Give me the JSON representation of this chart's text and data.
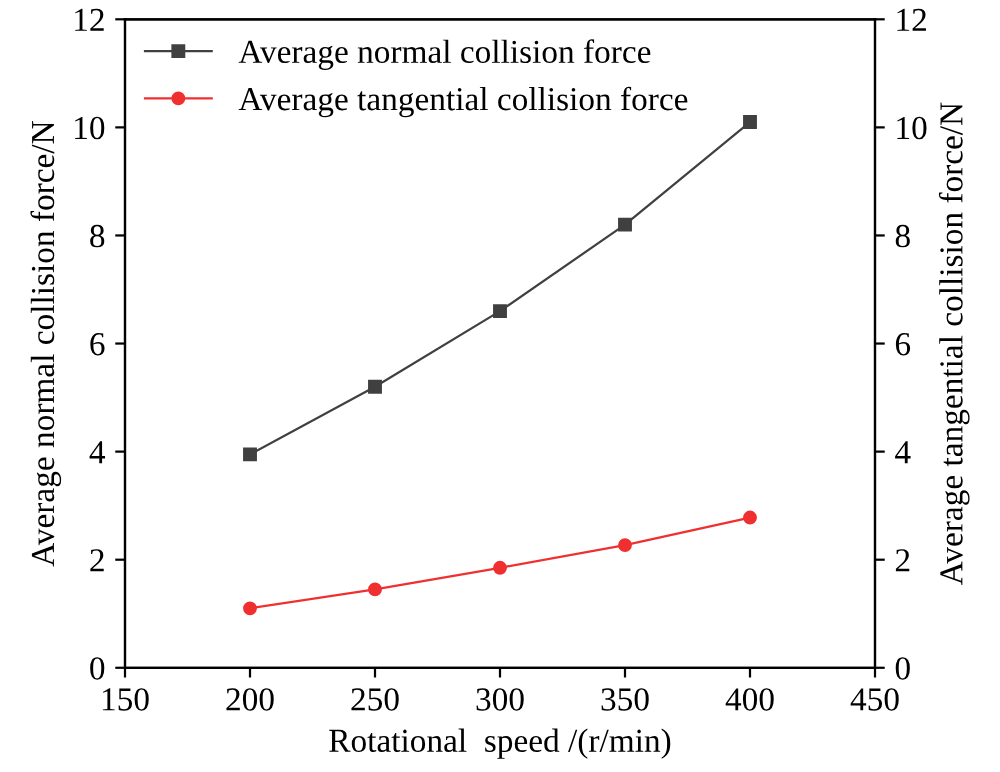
{
  "chart_data": {
    "type": "line",
    "xlabel": "Rotational  speed /(r/min)",
    "ylabel": "Average normal collision force/N",
    "y2label": "Average tangential collision force/N",
    "x": [
      200,
      250,
      300,
      350,
      400
    ],
    "series": [
      {
        "name": "Average normal collision force",
        "color": "#404040",
        "marker": "square",
        "values": [
          3.95,
          5.2,
          6.6,
          8.2,
          10.1
        ]
      },
      {
        "name": "Average tangential collision force",
        "color": "#f03030",
        "marker": "circle",
        "values": [
          1.1,
          1.45,
          1.85,
          2.27,
          2.78
        ]
      }
    ],
    "xlim": [
      150,
      450
    ],
    "xticks": [
      150,
      200,
      250,
      300,
      350,
      400,
      450
    ],
    "ylim": [
      0,
      12
    ],
    "yticks": [
      0,
      2,
      4,
      6,
      8,
      10,
      12
    ],
    "y2lim": [
      0,
      12
    ],
    "y2ticks": [
      0,
      2,
      4,
      6,
      8,
      10,
      12
    ],
    "legend": "top left",
    "grid": false,
    "line_style": "solid"
  }
}
